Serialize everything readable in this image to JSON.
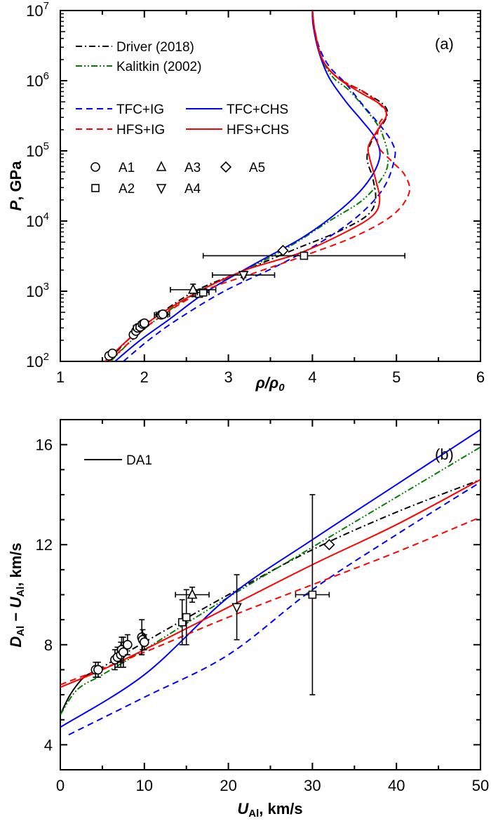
{
  "chart_data": [
    {
      "type": "line",
      "panel_label": "(a)",
      "xlabel": "ρ/ρ0",
      "ylabel": "P, GPa",
      "xlim": [
        1,
        6
      ],
      "ylim": [
        100,
        10000000
      ],
      "yscale": "log",
      "x_ticks": [
        "1",
        "2",
        "3",
        "4",
        "5",
        "6"
      ],
      "y_ticks": [
        {
          "base": "10",
          "exp": "2",
          "value": 100
        },
        {
          "base": "10",
          "exp": "3",
          "value": 1000
        },
        {
          "base": "10",
          "exp": "4",
          "value": 10000
        },
        {
          "base": "10",
          "exp": "5",
          "value": 100000
        },
        {
          "base": "10",
          "exp": "6",
          "value": 1000000
        },
        {
          "base": "10",
          "exp": "7",
          "value": 10000000
        }
      ],
      "legend_lines": [
        {
          "name": "Driver (2018)",
          "color": "#000000",
          "style": "dashdot"
        },
        {
          "name": "Kalitkin (2002)",
          "color": "#008000",
          "style": "dashdotdot"
        },
        {
          "name": "TFC+IG",
          "color": "#0000ff",
          "style": "dashed"
        },
        {
          "name": "TFC+CHS",
          "color": "#0000ff",
          "style": "solid"
        },
        {
          "name": "HFS+IG",
          "color": "#ff0000",
          "style": "dashed"
        },
        {
          "name": "HFS+CHS",
          "color": "#ff0000",
          "style": "solid"
        }
      ],
      "legend_markers": [
        {
          "name": "A1",
          "marker": "circle"
        },
        {
          "name": "A2",
          "marker": "square"
        },
        {
          "name": "A3",
          "marker": "triangle-up"
        },
        {
          "name": "A4",
          "marker": "triangle-down"
        },
        {
          "name": "A5",
          "marker": "diamond"
        }
      ],
      "series": [
        {
          "name": "Driver (2018)",
          "color": "#000000",
          "style": "dashdot",
          "points": [
            [
              1.57,
              100
            ],
            [
              1.8,
              200
            ],
            [
              2.1,
              400
            ],
            [
              2.6,
              1000
            ],
            [
              3.2,
              2000
            ],
            [
              3.8,
              4000
            ],
            [
              4.3,
              7000
            ],
            [
              4.65,
              12000
            ],
            [
              4.75,
              20000
            ],
            [
              4.72,
              40000
            ],
            [
              4.65,
              80000
            ],
            [
              4.72,
              150000
            ],
            [
              4.88,
              300000
            ],
            [
              4.85,
              450000
            ],
            [
              4.6,
              700000
            ],
            [
              4.3,
              1100000
            ],
            [
              4.12,
              2000000
            ],
            [
              4.03,
              5000000
            ],
            [
              4.0,
              10000000
            ]
          ]
        },
        {
          "name": "Kalitkin (2002)",
          "color": "#008000",
          "style": "dashdotdot",
          "points": [
            [
              1.6,
              100
            ],
            [
              1.85,
              200
            ],
            [
              2.15,
              400
            ],
            [
              2.65,
              1000
            ],
            [
              3.2,
              2000
            ],
            [
              3.75,
              4500
            ],
            [
              4.2,
              10000
            ],
            [
              4.6,
              20000
            ],
            [
              4.85,
              45000
            ],
            [
              4.9,
              80000
            ],
            [
              4.85,
              150000
            ],
            [
              4.75,
              260000
            ],
            [
              4.45,
              700000
            ],
            [
              4.25,
              1100000
            ],
            [
              4.12,
              2000000
            ],
            [
              4.03,
              5000000
            ],
            [
              4.0,
              10000000
            ]
          ]
        },
        {
          "name": "TFC+IG",
          "color": "#0000ff",
          "style": "dashed",
          "points": [
            [
              1.75,
              100
            ],
            [
              2.05,
              200
            ],
            [
              2.4,
              400
            ],
            [
              2.95,
              1000
            ],
            [
              3.55,
              2200
            ],
            [
              4.1,
              5000
            ],
            [
              4.55,
              12000
            ],
            [
              4.85,
              30000
            ],
            [
              4.98,
              80000
            ],
            [
              4.95,
              130000
            ],
            [
              4.82,
              220000
            ],
            [
              4.6,
              450000
            ],
            [
              4.4,
              900000
            ],
            [
              4.2,
              1600000
            ],
            [
              4.08,
              3000000
            ],
            [
              4.02,
              6000000
            ],
            [
              4.0,
              10000000
            ]
          ]
        },
        {
          "name": "TFC+CHS",
          "color": "#0000ff",
          "style": "solid",
          "points": [
            [
              1.65,
              100
            ],
            [
              1.95,
              200
            ],
            [
              2.3,
              400
            ],
            [
              2.75,
              1000
            ],
            [
              3.3,
              2400
            ],
            [
              3.9,
              6000
            ],
            [
              4.35,
              15000
            ],
            [
              4.65,
              35000
            ],
            [
              4.8,
              80000
            ],
            [
              4.75,
              150000
            ],
            [
              4.6,
              260000
            ],
            [
              4.4,
              500000
            ],
            [
              4.2,
              1100000
            ],
            [
              4.08,
              2500000
            ],
            [
              4.01,
              6000000
            ],
            [
              4.0,
              10000000
            ]
          ]
        },
        {
          "name": "HFS+IG",
          "color": "#ff0000",
          "style": "dashed",
          "points": [
            [
              1.58,
              100
            ],
            [
              1.85,
              200
            ],
            [
              2.15,
              400
            ],
            [
              2.7,
              1000
            ],
            [
              3.3,
              1800
            ],
            [
              3.9,
              3200
            ],
            [
              4.5,
              6000
            ],
            [
              4.95,
              12000
            ],
            [
              5.15,
              25000
            ],
            [
              5.1,
              45000
            ],
            [
              4.95,
              70000
            ],
            [
              4.78,
              120000
            ],
            [
              4.8,
              250000
            ],
            [
              4.88,
              350000
            ],
            [
              4.65,
              650000
            ],
            [
              4.3,
              1100000
            ],
            [
              4.12,
              2000000
            ],
            [
              4.03,
              5000000
            ],
            [
              4.0,
              10000000
            ]
          ]
        },
        {
          "name": "HFS+CHS",
          "color": "#ff0000",
          "style": "solid",
          "points": [
            [
              1.53,
              100
            ],
            [
              1.8,
              200
            ],
            [
              2.1,
              400
            ],
            [
              2.65,
              1000
            ],
            [
              3.2,
              2000
            ],
            [
              3.85,
              3500
            ],
            [
              4.4,
              7000
            ],
            [
              4.72,
              12000
            ],
            [
              4.8,
              20000
            ],
            [
              4.75,
              40000
            ],
            [
              4.68,
              80000
            ],
            [
              4.67,
              120000
            ],
            [
              4.8,
              220000
            ],
            [
              4.88,
              320000
            ],
            [
              4.82,
              450000
            ],
            [
              4.55,
              700000
            ],
            [
              4.3,
              1100000
            ],
            [
              4.12,
              2000000
            ],
            [
              4.03,
              5000000
            ],
            [
              4.0,
              10000000
            ]
          ]
        }
      ],
      "markers": [
        {
          "set": "A1",
          "marker": "circle",
          "points": [
            [
              1.58,
              120
            ],
            [
              1.62,
              130
            ],
            [
              1.87,
              240
            ],
            [
              1.9,
              270
            ],
            [
              1.92,
              300
            ],
            [
              1.95,
              310
            ],
            [
              1.98,
              340
            ],
            [
              2.0,
              350
            ],
            [
              2.2,
              460
            ],
            [
              2.22,
              470
            ]
          ],
          "xerr": [
            0,
            0,
            0.04,
            0.04,
            0.05,
            0.05,
            0.05,
            0.05,
            0.08,
            0.08
          ]
        },
        {
          "set": "A2",
          "marker": "square",
          "points": [
            [
              2.65,
              920
            ],
            [
              2.7,
              960
            ],
            [
              3.9,
              3200
            ]
          ],
          "xerr": [
            0.07,
            0.07,
            1.2
          ],
          "yerr_rel": [
            0.05,
            0.05,
            0.1
          ]
        },
        {
          "set": "A3",
          "marker": "triangle-up",
          "points": [
            [
              2.58,
              1050
            ]
          ],
          "xerr": [
            0.27
          ],
          "yerr_rel": [
            0.2
          ]
        },
        {
          "set": "A4",
          "marker": "triangle-down",
          "points": [
            [
              3.18,
              1700
            ]
          ],
          "xerr": [
            0.37
          ],
          "yerr_rel": [
            0.08
          ]
        },
        {
          "set": "A5",
          "marker": "diamond",
          "points": [
            [
              3.65,
              3800
            ]
          ],
          "xerr": [
            0
          ],
          "yerr_rel": [
            0
          ]
        }
      ]
    },
    {
      "type": "line",
      "panel_label": "(b)",
      "xlabel": "UAl, km/s",
      "xlabel_main": "U",
      "xlabel_sub": "Al",
      "xlabel_tail": ", km/s",
      "ylabel": "DAl − UAl, km/s",
      "ylabel_parts": {
        "d": "D",
        "d_sub": "Al",
        "minus": " − ",
        "u": "U",
        "u_sub": "Al",
        "tail": ", km/s"
      },
      "xlim": [
        0,
        50
      ],
      "ylim": [
        3,
        17
      ],
      "x_ticks": [
        "0",
        "10",
        "20",
        "30",
        "40",
        "50"
      ],
      "y_ticks": [
        "4",
        "8",
        "12",
        "16"
      ],
      "legend_lines": [
        {
          "name": "DA1",
          "color": "#000000",
          "style": "solid"
        }
      ],
      "series": [
        {
          "name": "DA1",
          "color": "#000000",
          "style": "solid",
          "points": [
            [
              0,
              5.2
            ],
            [
              1,
              5.9
            ],
            [
              2,
              6.4
            ],
            [
              3,
              6.75
            ],
            [
              4.5,
              7.0
            ]
          ]
        },
        {
          "name": "Driver (2018)",
          "color": "#000000",
          "style": "dashdot",
          "points": [
            [
              4.5,
              7.0
            ],
            [
              10,
              8.1
            ],
            [
              20,
              10.0
            ],
            [
              30,
              11.8
            ],
            [
              40,
              13.3
            ],
            [
              50,
              14.6
            ]
          ]
        },
        {
          "name": "Kalitkin (2002)",
          "color": "#008000",
          "style": "dashdotdot",
          "points": [
            [
              0,
              5.2
            ],
            [
              2,
              6.2
            ],
            [
              5,
              6.8
            ],
            [
              10,
              7.8
            ],
            [
              20,
              9.9
            ],
            [
              30,
              11.9
            ],
            [
              40,
              13.9
            ],
            [
              50,
              15.9
            ]
          ]
        },
        {
          "name": "TFC+IG",
          "color": "#0000ff",
          "style": "dashed",
          "points": [
            [
              1,
              4.4
            ],
            [
              10,
              5.9
            ],
            [
              20,
              7.6
            ],
            [
              30,
              10.2
            ],
            [
              40,
              12.4
            ],
            [
              50,
              14.5
            ]
          ]
        },
        {
          "name": "TFC+CHS",
          "color": "#0000ff",
          "style": "solid",
          "points": [
            [
              0,
              4.7
            ],
            [
              10,
              6.8
            ],
            [
              20,
              9.9
            ],
            [
              30,
              12.2
            ],
            [
              40,
              14.4
            ],
            [
              50,
              16.6
            ]
          ]
        },
        {
          "name": "HFS+IG",
          "color": "#ff0000",
          "style": "dashed",
          "points": [
            [
              0,
              6.4
            ],
            [
              10,
              7.7
            ],
            [
              20,
              9.1
            ],
            [
              30,
              10.4
            ],
            [
              40,
              11.7
            ],
            [
              50,
              13.1
            ]
          ]
        },
        {
          "name": "HFS+CHS",
          "color": "#ff0000",
          "style": "solid",
          "points": [
            [
              0,
              6.3
            ],
            [
              5,
              7.0
            ],
            [
              10,
              7.8
            ],
            [
              20,
              9.5
            ],
            [
              30,
              11.2
            ],
            [
              40,
              12.8
            ],
            [
              50,
              14.6
            ]
          ]
        }
      ],
      "markers": [
        {
          "set": "A1",
          "marker": "circle",
          "points": [
            [
              4.2,
              7.0
            ],
            [
              4.5,
              7.0
            ],
            [
              6.5,
              7.4
            ],
            [
              6.8,
              7.5
            ],
            [
              7.2,
              7.6
            ],
            [
              7.3,
              7.8
            ],
            [
              7.5,
              7.7
            ],
            [
              8.0,
              8.0
            ],
            [
              9.7,
              8.3
            ],
            [
              9.8,
              8.2
            ],
            [
              10.0,
              8.1
            ]
          ],
          "yerr": [
            0.3,
            0.3,
            0.4,
            0.4,
            0.5,
            0.5,
            0.6,
            0.4,
            0.7,
            0.4,
            0.3
          ]
        },
        {
          "set": "A2",
          "marker": "square",
          "points": [
            [
              14.5,
              8.9
            ],
            [
              15.0,
              9.1
            ],
            [
              30.0,
              10.0
            ]
          ],
          "xerr": [
            0,
            0,
            2.0
          ],
          "yerr": [
            0.9,
            1.1,
            4.0
          ]
        },
        {
          "set": "A3",
          "marker": "triangle-up",
          "points": [
            [
              15.7,
              10.0
            ]
          ],
          "xerr": [
            2.0
          ],
          "yerr": [
            0.3
          ]
        },
        {
          "set": "A4",
          "marker": "triangle-down",
          "points": [
            [
              21.0,
              9.5
            ]
          ],
          "xerr": [
            0
          ],
          "yerr": [
            1.3
          ]
        },
        {
          "set": "A5",
          "marker": "diamond",
          "points": [
            [
              32.0,
              12.0
            ]
          ],
          "xerr": [
            0
          ],
          "yerr": [
            0
          ]
        }
      ]
    }
  ]
}
